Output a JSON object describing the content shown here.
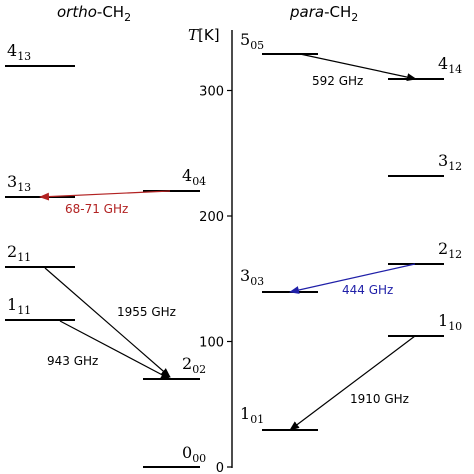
{
  "headers": {
    "ortho_italic": "ortho",
    "para_italic": "para",
    "species": "-CH",
    "species_sub": "2"
  },
  "axis": {
    "label_T": "T",
    "label_unit": "[K]",
    "ticks": [
      0,
      100,
      200,
      300
    ],
    "range": [
      0,
      340
    ]
  },
  "levels": [
    {
      "id": "ortho-0-00",
      "col": "ortho-left",
      "main": "0",
      "sub": "00"
    },
    {
      "id": "ortho-1-11",
      "col": "ortho-left",
      "main": "1",
      "sub": "11"
    },
    {
      "id": "ortho-2-11",
      "col": "ortho-left",
      "main": "2",
      "sub": "11"
    },
    {
      "id": "ortho-3-13",
      "col": "ortho-left",
      "main": "3",
      "sub": "13"
    },
    {
      "id": "ortho-4-13",
      "col": "ortho-left",
      "main": "4",
      "sub": "13"
    },
    {
      "id": "ortho-2-02",
      "col": "ortho-right",
      "main": "2",
      "sub": "02"
    },
    {
      "id": "ortho-4-04",
      "col": "ortho-right",
      "main": "4",
      "sub": "04"
    },
    {
      "id": "para-1-01",
      "col": "para-left",
      "main": "1",
      "sub": "01"
    },
    {
      "id": "para-3-03",
      "col": "para-left",
      "main": "3",
      "sub": "03"
    },
    {
      "id": "para-5-05",
      "col": "para-left",
      "main": "5",
      "sub": "05"
    },
    {
      "id": "para-1-10",
      "col": "para-right",
      "main": "1",
      "sub": "10"
    },
    {
      "id": "para-2-12",
      "col": "para-right",
      "main": "2",
      "sub": "12"
    },
    {
      "id": "para-3-12",
      "col": "para-right",
      "main": "3",
      "sub": "12"
    },
    {
      "id": "para-4-14",
      "col": "para-right",
      "main": "4",
      "sub": "14"
    }
  ],
  "transitions": [
    {
      "id": "t-1955",
      "label": "1955 GHz",
      "color": "#000000"
    },
    {
      "id": "t-943",
      "label": "943 GHz",
      "color": "#000000"
    },
    {
      "id": "t-6871",
      "label": "68-71 GHz",
      "color": "#b22222"
    },
    {
      "id": "t-592",
      "label": "592 GHz",
      "color": "#000000"
    },
    {
      "id": "t-444",
      "label": "444 GHz",
      "color": "#1f1fa8"
    },
    {
      "id": "t-1910",
      "label": "1910 GHz",
      "color": "#000000"
    }
  ]
}
